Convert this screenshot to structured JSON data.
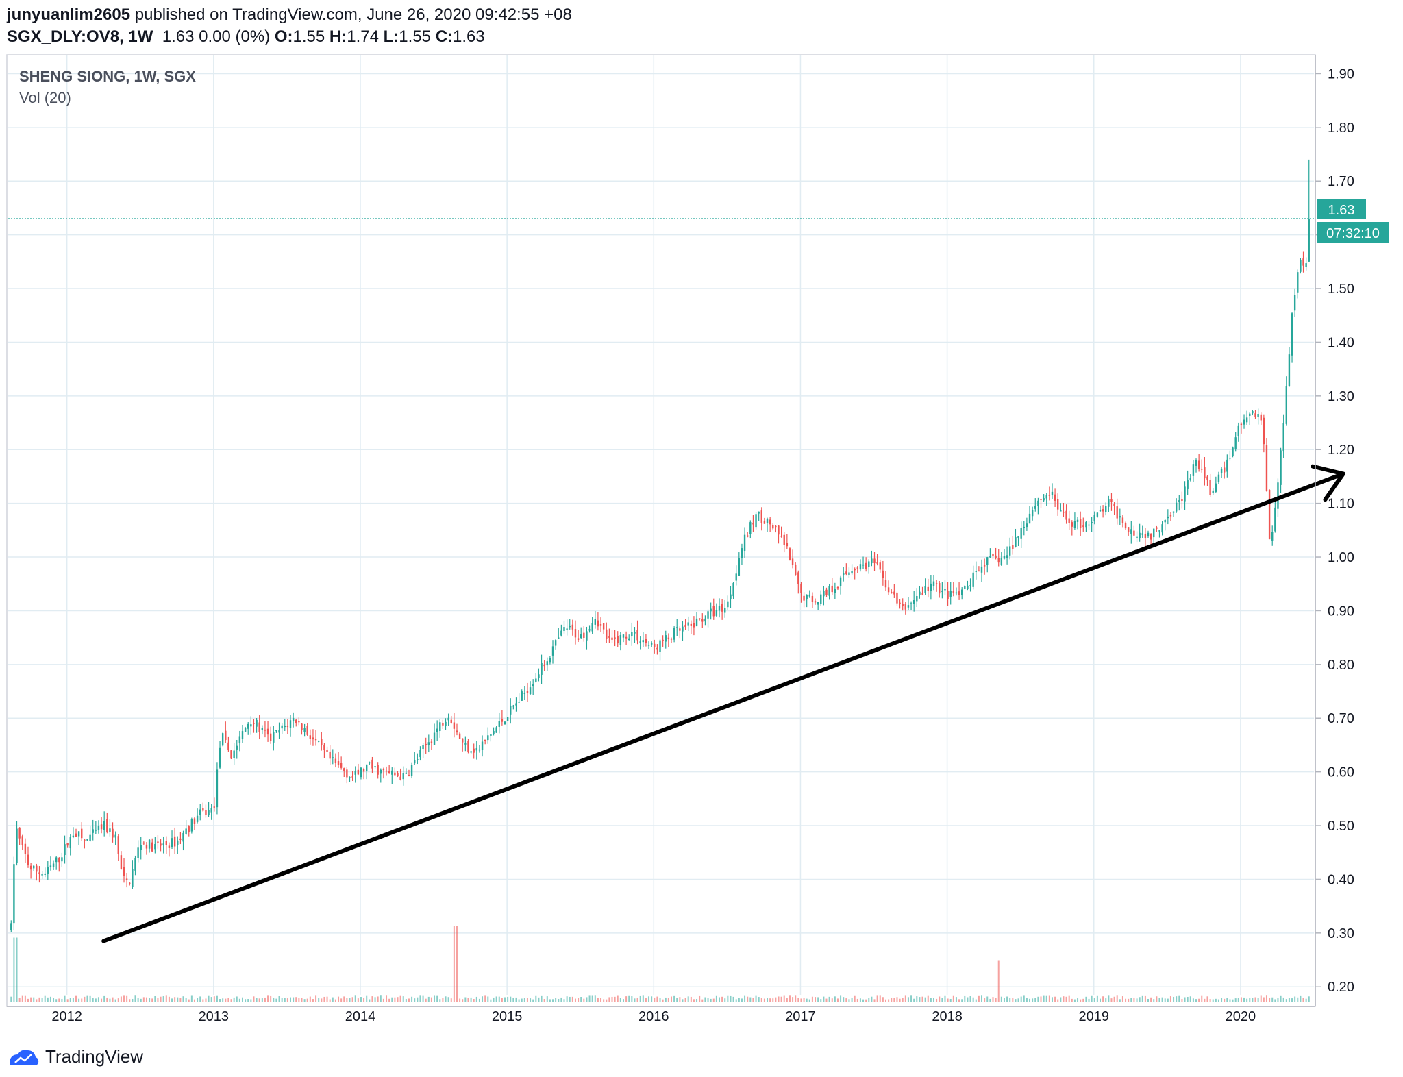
{
  "header": {
    "author": "junyuanlim2605",
    "published_text": "published on TradingView.com, June 26, 2020 09:42:55 +08",
    "symbol": "SGX_DLY:OV8, 1W",
    "quote_change": "1.63 0.00 (0%)",
    "o_label": "O:",
    "o_value": "1.55",
    "h_label": "H:",
    "h_value": "1.74",
    "l_label": "L:",
    "l_value": "1.55",
    "c_label": "C:",
    "c_value": "1.63"
  },
  "legend": {
    "title": "SHENG SIONG, 1W, SGX",
    "volume_label": "Vol (20)"
  },
  "price_axis": {
    "ticks": [
      "1.90",
      "1.80",
      "1.70",
      "1.60",
      "1.50",
      "1.40",
      "1.30",
      "1.20",
      "1.10",
      "1.00",
      "0.90",
      "0.80",
      "0.70",
      "0.60",
      "0.50",
      "0.40",
      "0.30",
      "0.20"
    ],
    "last_price": "1.63",
    "countdown": "07:32:10"
  },
  "time_axis": {
    "ticks": [
      "2012",
      "2013",
      "2014",
      "2015",
      "2016",
      "2017",
      "2018",
      "2019",
      "2020"
    ]
  },
  "footer": {
    "brand": "TradingView"
  },
  "colors": {
    "up": "#26a69a",
    "down": "#ef5350",
    "grid": "#e1ecf2",
    "last_price": "#26a69a",
    "trendline": "#000000"
  },
  "chart_data": {
    "type": "candlestick",
    "title": "SHENG SIONG, 1W, SGX",
    "interval": "1W",
    "x_range": [
      2011.6,
      2020.5
    ],
    "ylim": [
      0.185,
      1.935
    ],
    "grid": true,
    "y_ticks": [
      0.2,
      0.3,
      0.4,
      0.5,
      0.6,
      0.7,
      0.8,
      0.9,
      1.0,
      1.1,
      1.2,
      1.3,
      1.4,
      1.5,
      1.6,
      1.7,
      1.8,
      1.9
    ],
    "x_ticks": [
      2012,
      2013,
      2014,
      2015,
      2016,
      2017,
      2018,
      2019,
      2020
    ],
    "last_close": 1.63,
    "latest_bar": {
      "open": 1.55,
      "high": 1.74,
      "low": 1.55,
      "close": 1.63
    },
    "price_path": [
      [
        2011.62,
        0.31
      ],
      [
        2011.65,
        0.5
      ],
      [
        2011.68,
        0.47
      ],
      [
        2011.75,
        0.42
      ],
      [
        2011.85,
        0.41
      ],
      [
        2011.95,
        0.44
      ],
      [
        2012.05,
        0.49
      ],
      [
        2012.12,
        0.47
      ],
      [
        2012.25,
        0.5
      ],
      [
        2012.33,
        0.48
      ],
      [
        2012.38,
        0.4
      ],
      [
        2012.42,
        0.39
      ],
      [
        2012.5,
        0.47
      ],
      [
        2012.6,
        0.46
      ],
      [
        2012.75,
        0.47
      ],
      [
        2012.9,
        0.52
      ],
      [
        2013.0,
        0.53
      ],
      [
        2013.05,
        0.67
      ],
      [
        2013.12,
        0.63
      ],
      [
        2013.25,
        0.7
      ],
      [
        2013.38,
        0.66
      ],
      [
        2013.55,
        0.7
      ],
      [
        2013.65,
        0.67
      ],
      [
        2013.8,
        0.62
      ],
      [
        2013.95,
        0.59
      ],
      [
        2014.05,
        0.61
      ],
      [
        2014.15,
        0.6
      ],
      [
        2014.3,
        0.59
      ],
      [
        2014.45,
        0.65
      ],
      [
        2014.6,
        0.71
      ],
      [
        2014.7,
        0.65
      ],
      [
        2014.8,
        0.64
      ],
      [
        2014.95,
        0.69
      ],
      [
        2015.1,
        0.74
      ],
      [
        2015.25,
        0.8
      ],
      [
        2015.4,
        0.87
      ],
      [
        2015.5,
        0.85
      ],
      [
        2015.6,
        0.89
      ],
      [
        2015.7,
        0.84
      ],
      [
        2015.85,
        0.86
      ],
      [
        2016.0,
        0.83
      ],
      [
        2016.15,
        0.86
      ],
      [
        2016.25,
        0.87
      ],
      [
        2016.35,
        0.89
      ],
      [
        2016.5,
        0.91
      ],
      [
        2016.6,
        1.02
      ],
      [
        2016.7,
        1.08
      ],
      [
        2016.8,
        1.06
      ],
      [
        2016.9,
        1.02
      ],
      [
        2017.0,
        0.93
      ],
      [
        2017.1,
        0.92
      ],
      [
        2017.25,
        0.95
      ],
      [
        2017.35,
        0.98
      ],
      [
        2017.5,
        0.99
      ],
      [
        2017.6,
        0.94
      ],
      [
        2017.7,
        0.9
      ],
      [
        2017.8,
        0.93
      ],
      [
        2017.9,
        0.95
      ],
      [
        2018.0,
        0.93
      ],
      [
        2018.1,
        0.93
      ],
      [
        2018.25,
        0.99
      ],
      [
        2018.4,
        1.0
      ],
      [
        2018.5,
        1.05
      ],
      [
        2018.6,
        1.1
      ],
      [
        2018.7,
        1.12
      ],
      [
        2018.8,
        1.07
      ],
      [
        2018.9,
        1.06
      ],
      [
        2019.0,
        1.07
      ],
      [
        2019.1,
        1.1
      ],
      [
        2019.25,
        1.05
      ],
      [
        2019.4,
        1.04
      ],
      [
        2019.5,
        1.08
      ],
      [
        2019.6,
        1.11
      ],
      [
        2019.7,
        1.18
      ],
      [
        2019.8,
        1.12
      ],
      [
        2019.9,
        1.17
      ],
      [
        2020.0,
        1.25
      ],
      [
        2020.1,
        1.27
      ],
      [
        2020.15,
        1.25
      ],
      [
        2020.2,
        1.02
      ],
      [
        2020.25,
        1.12
      ],
      [
        2020.3,
        1.28
      ],
      [
        2020.35,
        1.45
      ],
      [
        2020.4,
        1.56
      ],
      [
        2020.45,
        1.54
      ],
      [
        2020.48,
        1.63
      ]
    ],
    "volume_spikes": [
      {
        "x": 2014.65,
        "volume_fraction": 1.0
      },
      {
        "x": 2018.35,
        "volume_fraction": 0.55
      },
      {
        "x": 2011.65,
        "volume_fraction": 0.85
      }
    ],
    "annotations": [
      {
        "type": "trendline_arrow",
        "from": [
          2012.25,
          0.285
        ],
        "to": [
          2020.7,
          1.155
        ]
      }
    ]
  }
}
